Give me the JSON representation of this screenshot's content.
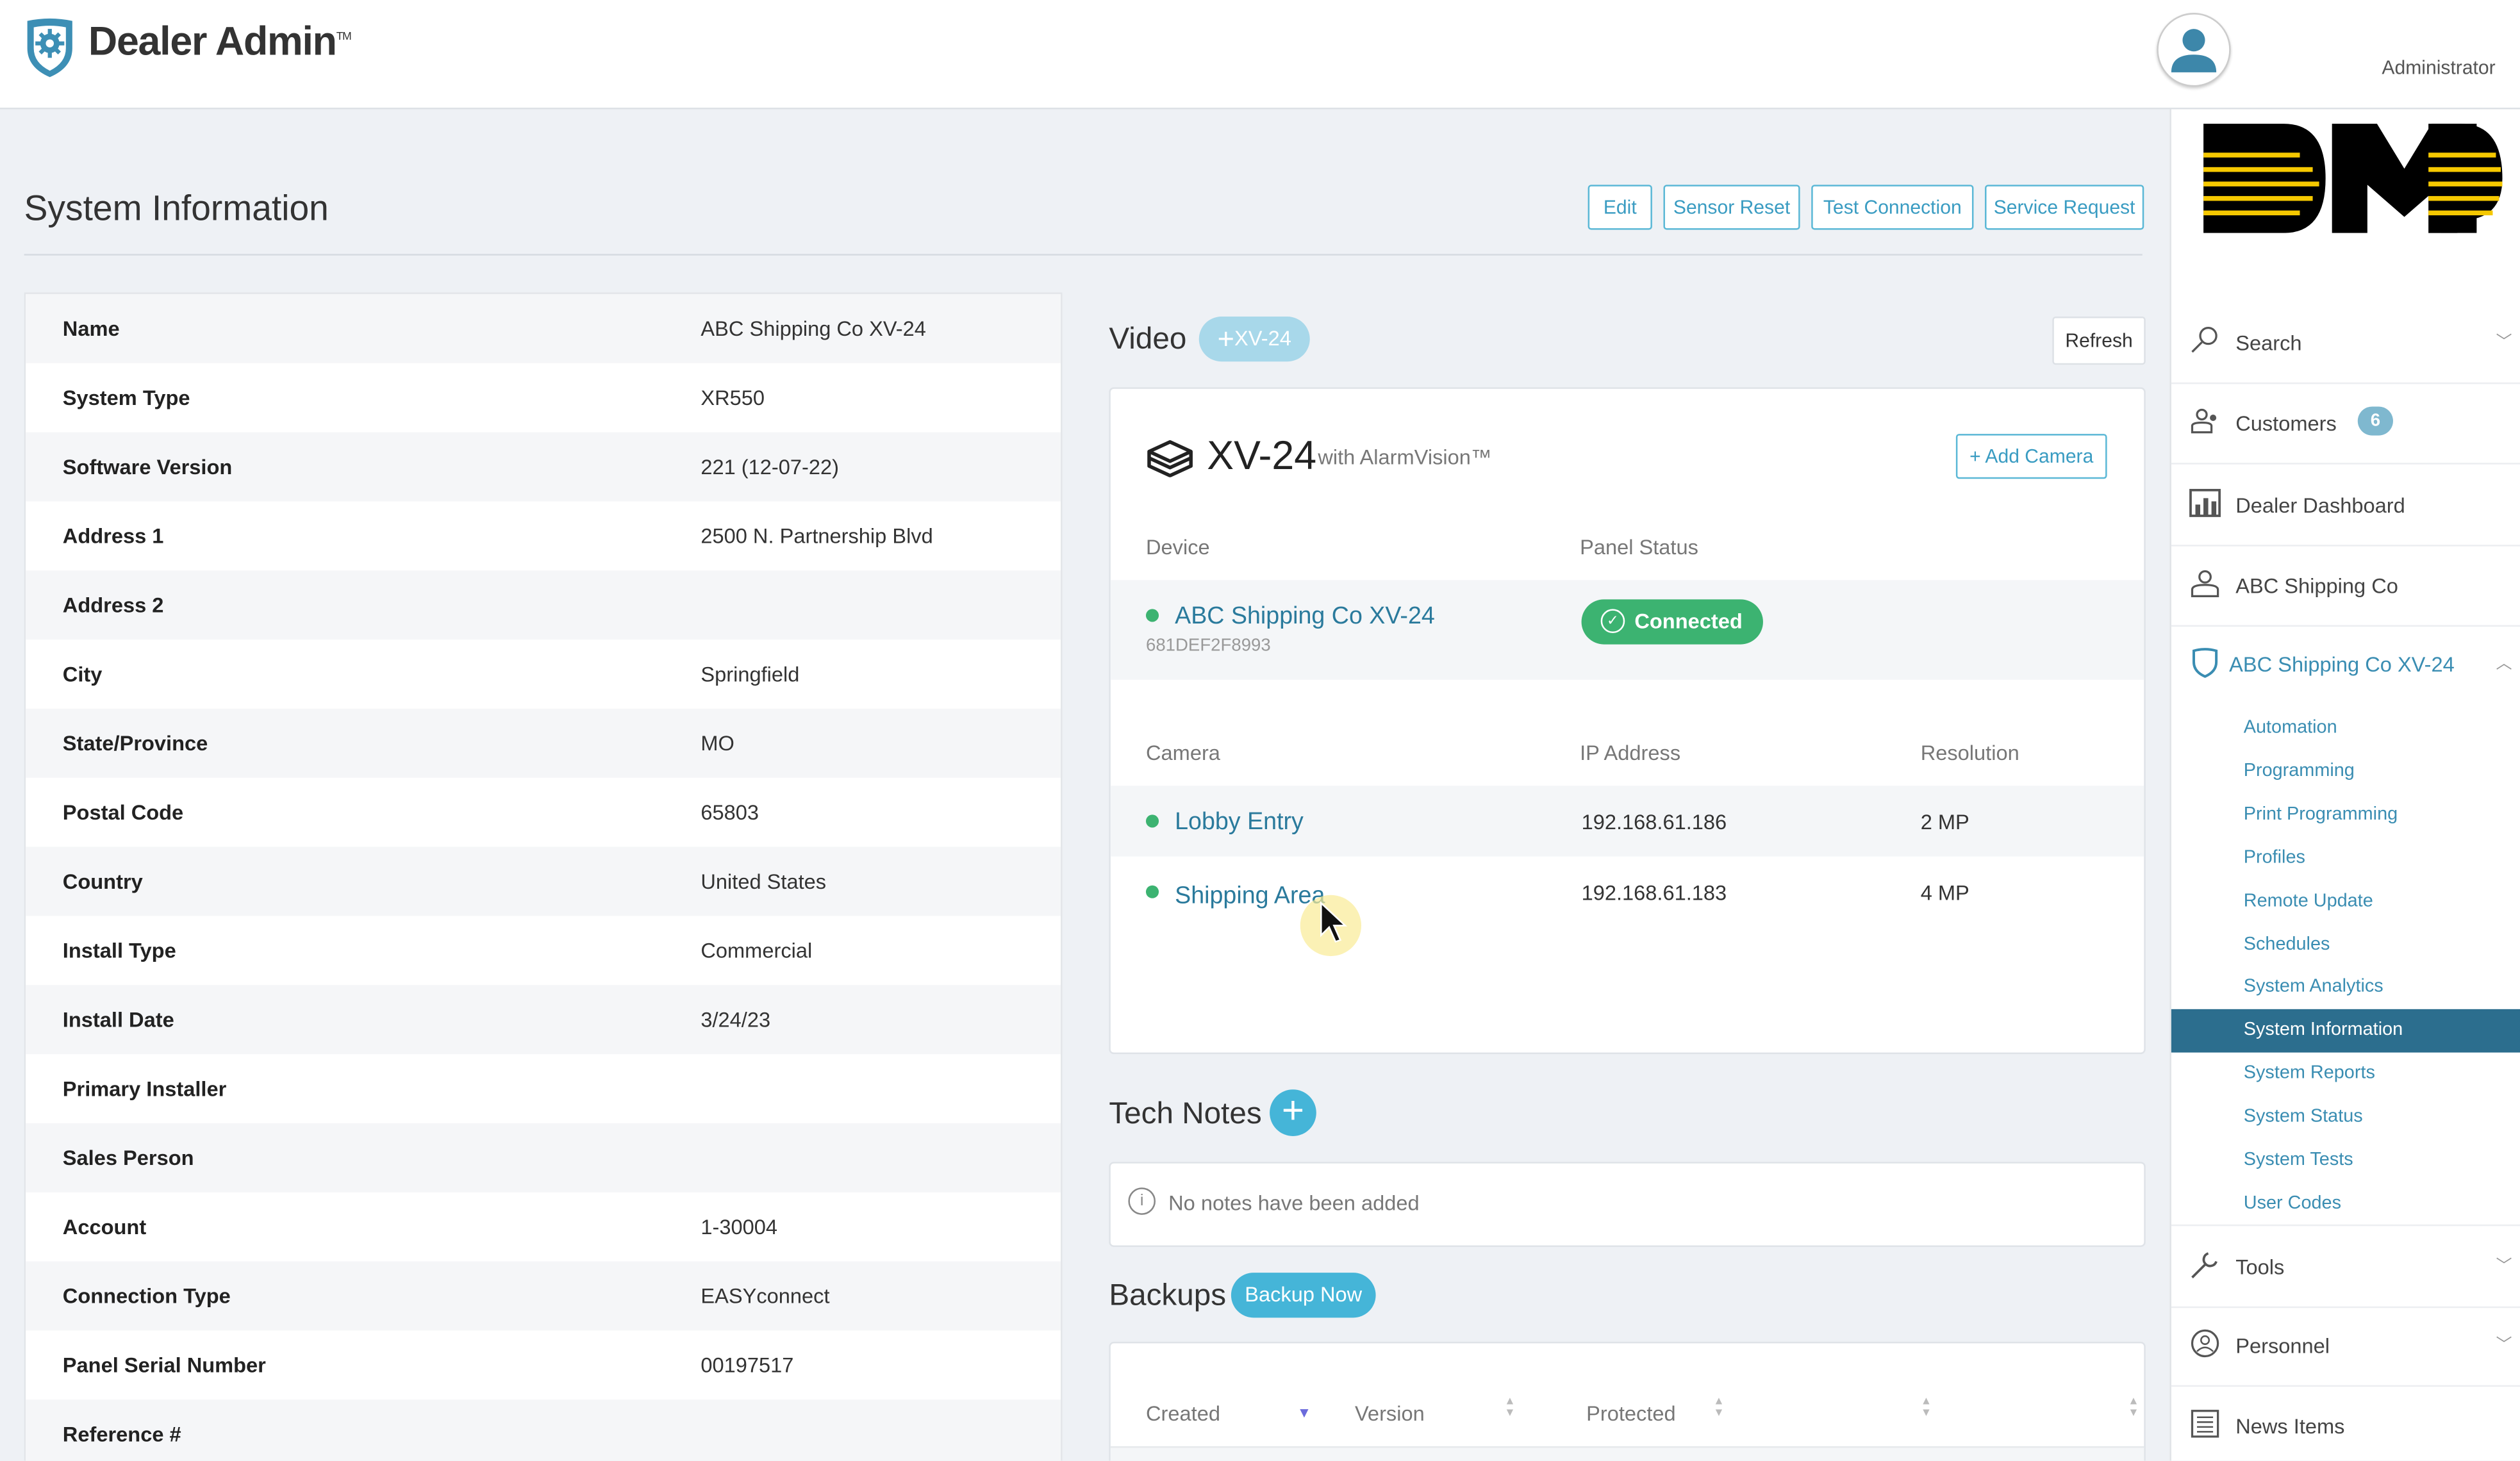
{
  "header": {
    "app_title": "Dealer Admin",
    "trademark": "TM",
    "user_role": "Administrator"
  },
  "page": {
    "title": "System Information",
    "actions": [
      "Edit",
      "Sensor Reset",
      "Test Connection",
      "Service Request"
    ]
  },
  "system_info": [
    {
      "label": "Name",
      "value": "ABC Shipping Co XV-24"
    },
    {
      "label": "System Type",
      "value": "XR550"
    },
    {
      "label": "Software Version",
      "value": "221 (12-07-22)"
    },
    {
      "label": "Address 1",
      "value": "2500 N. Partnership Blvd"
    },
    {
      "label": "Address 2",
      "value": ""
    },
    {
      "label": "City",
      "value": "Springfield"
    },
    {
      "label": "State/Province",
      "value": "MO"
    },
    {
      "label": "Postal Code",
      "value": "65803"
    },
    {
      "label": "Country",
      "value": "United States"
    },
    {
      "label": "Install Type",
      "value": "Commercial"
    },
    {
      "label": "Install Date",
      "value": "3/24/23"
    },
    {
      "label": "Primary Installer",
      "value": ""
    },
    {
      "label": "Sales Person",
      "value": ""
    },
    {
      "label": "Account",
      "value": "1-30004"
    },
    {
      "label": "Connection Type",
      "value": "EASYconnect"
    },
    {
      "label": "Panel Serial Number",
      "value": "00197517"
    },
    {
      "label": "Reference #",
      "value": ""
    }
  ],
  "video": {
    "title": "Video",
    "add_badge": "XV-24",
    "refresh": "Refresh",
    "product": "XV-24",
    "product_sub": "with AlarmVision™",
    "add_camera": "+ Add Camera",
    "device_headers": [
      "Device",
      "Panel Status"
    ],
    "device": {
      "name": "ABC Shipping Co XV-24",
      "serial": "681DEF2F8993",
      "status": "Connected",
      "status_color": "#3cb371"
    },
    "camera_headers": [
      "Camera",
      "IP Address",
      "Resolution"
    ],
    "cameras": [
      {
        "name": "Lobby Entry",
        "ip": "192.168.61.186",
        "resolution": "2 MP"
      },
      {
        "name": "Shipping Area",
        "ip": "192.168.61.183",
        "resolution": "4 MP"
      }
    ]
  },
  "tech_notes": {
    "title": "Tech Notes",
    "empty": "No notes have been added"
  },
  "backups": {
    "title": "Backups",
    "button": "Backup Now",
    "columns": [
      "Created",
      "Version",
      "Protected"
    ]
  },
  "sidebar": {
    "logo": "DMP",
    "items": [
      {
        "label": "Search",
        "icon": "search-icon"
      },
      {
        "label": "Customers",
        "icon": "users-icon",
        "badge": "6"
      },
      {
        "label": "Dealer Dashboard",
        "icon": "dashboard-icon"
      },
      {
        "label": "ABC Shipping Co",
        "icon": "user-icon"
      },
      {
        "label": "ABC Shipping Co XV-24",
        "icon": "shield-icon"
      }
    ],
    "subitems": [
      "Automation",
      "Programming",
      "Print Programming",
      "Profiles",
      "Remote Update",
      "Schedules",
      "System Analytics",
      "System Information",
      "System Reports",
      "System Status",
      "System Tests",
      "User Codes"
    ],
    "active_subitem": "System Information",
    "bottom_items": [
      {
        "label": "Tools",
        "icon": "wrench-icon"
      },
      {
        "label": "Personnel",
        "icon": "personnel-icon"
      },
      {
        "label": "News Items",
        "icon": "news-icon"
      }
    ]
  },
  "colors": {
    "accent": "#3a9cc2",
    "active_nav": "#2c6e8e",
    "connected": "#3cb371",
    "badge": "#7fb8cf"
  }
}
